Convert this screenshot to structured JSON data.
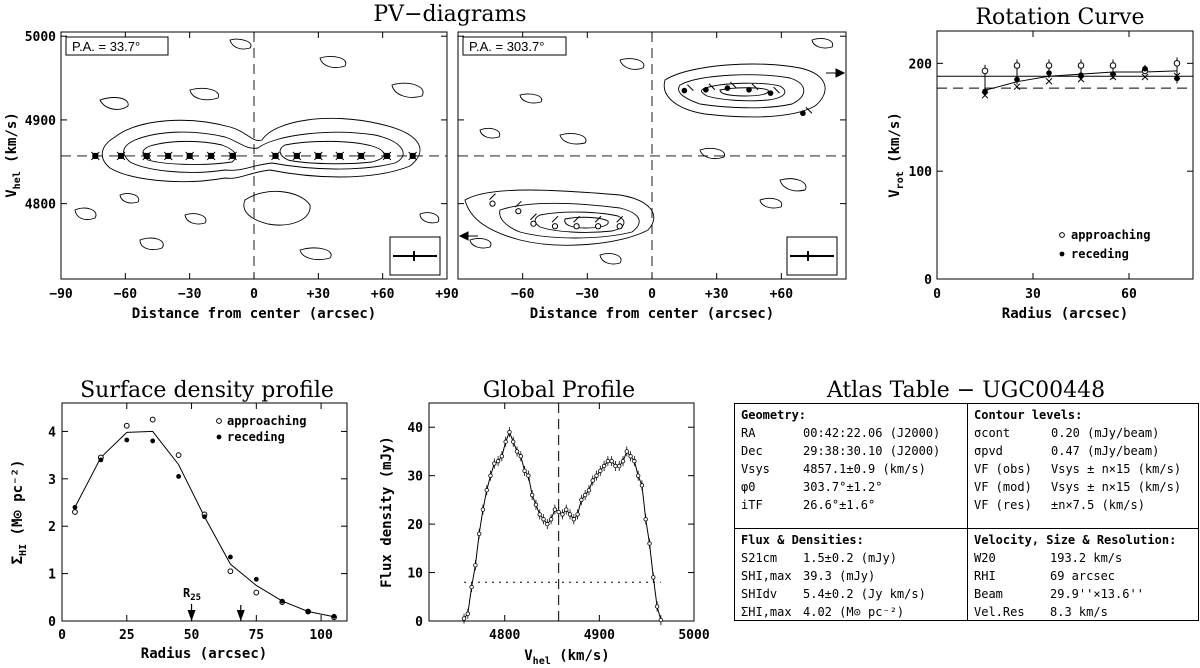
{
  "pv": {
    "title": "PV−diagrams",
    "xlabel": "Distance from center (arcsec)",
    "ylabel_main": "V",
    "ylabel_sub": "hel",
    "ylabel_unit": " (km/s)",
    "left_pa": "P.A. = 33.7°",
    "right_pa": "P.A. = 303.7°",
    "x_ticks": [
      "−90",
      "−60",
      "−30",
      "0",
      "+30",
      "+60",
      "+90"
    ],
    "x_ticks_right": [
      "−60",
      "−30",
      "0",
      "+30",
      "+60"
    ],
    "y_ticks": [
      "5000",
      "4900",
      "4800"
    ]
  },
  "rotation": {
    "title": "Rotation Curve",
    "xlabel": "Radius (arcsec)",
    "ylabel_main": "V",
    "ylabel_sub": "rot",
    "ylabel_unit": " (km/s)",
    "x_ticks": [
      "0",
      "30",
      "60"
    ],
    "y_ticks": [
      "0",
      "100",
      "200"
    ],
    "legend": [
      "approaching",
      "receding"
    ]
  },
  "surface": {
    "title": "Surface density profile",
    "xlabel": "Radius (arcsec)",
    "ylabel_main": "Σ",
    "ylabel_sub": "HI",
    "ylabel_unit": " (M⊙ pc⁻²)",
    "x_ticks": [
      "0",
      "25",
      "50",
      "75",
      "100"
    ],
    "y_ticks": [
      "0",
      "1",
      "2",
      "3",
      "4"
    ],
    "legend": [
      "approaching",
      "receding"
    ],
    "r25_main": "R",
    "r25_sub": "25"
  },
  "global": {
    "title": "Global Profile",
    "xlabel_main": "V",
    "xlabel_sub": "hel",
    "xlabel_unit": " (km/s)",
    "ylabel": "Flux density (mJy)",
    "x_ticks": [
      "4800",
      "4900",
      "5000"
    ],
    "y_ticks": [
      "0",
      "10",
      "20",
      "30",
      "40"
    ]
  },
  "atlas": {
    "title": "Atlas Table − UGC00448",
    "geometry": {
      "header": "Geometry:",
      "rows": [
        {
          "k": "RA",
          "v": "00:42:22.06 (J2000)"
        },
        {
          "k": "Dec",
          "v": "29:38:30.10 (J2000)"
        },
        {
          "k": "Vsys",
          "v": "4857.1±0.9 (km/s)"
        },
        {
          "k": "φ0",
          "v": "303.7°±1.2°"
        },
        {
          "k": "iTF",
          "v": "26.6°±1.6°"
        }
      ]
    },
    "contours": {
      "header": "Contour levels:",
      "rows": [
        {
          "k": "σcont",
          "v": "0.20 (mJy/beam)"
        },
        {
          "k": "σpvd",
          "v": "0.47 (mJy/beam)"
        },
        {
          "k": "VF (obs)",
          "v": "Vsys ± n×15 (km/s)"
        },
        {
          "k": "VF (mod)",
          "v": "Vsys ± n×15 (km/s)"
        },
        {
          "k": "VF (res)",
          "v": "±n×7.5 (km/s)"
        }
      ]
    },
    "flux": {
      "header": "Flux & Densities:",
      "rows": [
        {
          "k": "S21cm",
          "v": "1.5±0.2 (mJy)"
        },
        {
          "k": "SHI,max",
          "v": "39.3 (mJy)"
        },
        {
          "k": "SHIdv",
          "v": "5.4±0.2 (Jy km/s)"
        },
        {
          "k": "ΣHI,max",
          "v": "4.02 (M⊙ pc⁻²)"
        }
      ]
    },
    "velocity": {
      "header": "Velocity, Size & Resolution:",
      "rows": [
        {
          "k": "W20",
          "v": "193.2 km/s"
        },
        {
          "k": "RHI",
          "v": "69 arcsec"
        },
        {
          "k": "Beam",
          "v": "29.9''×13.6''"
        },
        {
          "k": "Vel.Res",
          "v": "8.3 km/s"
        }
      ]
    }
  },
  "chart_data": [
    {
      "type": "scatter",
      "title": "PV−diagrams",
      "panel": "left",
      "annotation": "P.A. = 33.7°",
      "xlabel": "Distance from center (arcsec)",
      "ylabel": "Vhel (km/s)",
      "xlim": [
        -90,
        90
      ],
      "ylim": [
        4710,
        5005
      ],
      "series": [
        {
          "x": [
            -74,
            -62,
            -50,
            -40,
            -30,
            -20,
            -10,
            10,
            20,
            30,
            40,
            50,
            62,
            74
          ],
          "y": [
            4857,
            4857,
            4857,
            4857,
            4857,
            4857,
            4857,
            4857,
            4857,
            4857,
            4857,
            4857,
            4857,
            4857
          ]
        }
      ]
    },
    {
      "type": "scatter",
      "title": "PV−diagrams",
      "panel": "right",
      "annotation": "P.A. = 303.7°",
      "xlabel": "Distance from center (arcsec)",
      "ylabel": "Vhel (km/s)",
      "xlim": [
        -90,
        90
      ],
      "ylim": [
        4710,
        5005
      ],
      "series": [
        {
          "x": [
            -74,
            -62,
            -55,
            -45,
            -35,
            -25,
            -15
          ],
          "y": [
            4800,
            4791,
            4776,
            4773,
            4773,
            4773,
            4773
          ]
        },
        {
          "x": [
            15,
            25,
            35,
            45,
            55,
            70
          ],
          "y": [
            4935,
            4936,
            4938,
            4936,
            4932,
            4908
          ]
        }
      ]
    },
    {
      "type": "scatter",
      "title": "Rotation Curve",
      "xlabel": "Radius (arcsec)",
      "ylabel": "Vrot (km/s)",
      "xlim": [
        0,
        80
      ],
      "ylim": [
        0,
        230
      ],
      "series": [
        {
          "name": "approaching",
          "x": [
            15,
            25,
            35,
            45,
            55,
            65,
            75
          ],
          "y": [
            193,
            198,
            198,
            198,
            198,
            193,
            200
          ]
        },
        {
          "name": "receding",
          "x": [
            15,
            25,
            35,
            45,
            55,
            65,
            75
          ],
          "y": [
            174,
            185,
            191,
            189,
            190,
            195,
            186
          ]
        },
        {
          "x": [
            15,
            25,
            35,
            45,
            55,
            65,
            75
          ],
          "y": [
            175,
            183,
            188,
            190,
            192,
            192,
            193
          ]
        }
      ],
      "hlines": [
        188,
        177
      ]
    },
    {
      "type": "line",
      "title": "Surface density profile",
      "xlabel": "Radius (arcsec)",
      "ylabel": "ΣHI (M⊙ pc⁻²)",
      "xlim": [
        0,
        110
      ],
      "ylim": [
        0,
        4.6
      ],
      "series": [
        {
          "name": "approaching",
          "x": [
            5,
            15,
            25,
            35,
            45,
            55,
            65,
            75,
            85,
            95,
            105
          ],
          "y": [
            2.3,
            3.45,
            4.12,
            4.25,
            3.5,
            2.25,
            1.05,
            0.6,
            0.4,
            0.2,
            0.08
          ]
        },
        {
          "name": "receding",
          "x": [
            5,
            15,
            25,
            35,
            45,
            55,
            65,
            75,
            85,
            95,
            105
          ],
          "y": [
            2.4,
            3.4,
            3.82,
            3.8,
            3.05,
            2.2,
            1.35,
            0.88,
            0.42,
            0.2,
            0.1
          ]
        },
        {
          "x": [
            5,
            15,
            25,
            35,
            45,
            55,
            65,
            75,
            85,
            95,
            105
          ],
          "y": [
            2.4,
            3.45,
            3.98,
            4.0,
            3.3,
            2.2,
            1.2,
            0.75,
            0.42,
            0.2,
            0.09
          ]
        }
      ],
      "markers_x": [
        50,
        69
      ]
    },
    {
      "type": "line",
      "title": "Global Profile",
      "xlabel": "Vhel (km/s)",
      "ylabel": "Flux density (mJy)",
      "xlim": [
        4720,
        5000
      ],
      "ylim": [
        0,
        45
      ],
      "series": [
        {
          "x": [
            4757,
            4761,
            4765,
            4769,
            4773,
            4777,
            4781,
            4785,
            4789,
            4793,
            4797,
            4801,
            4805,
            4809,
            4813,
            4817,
            4821,
            4825,
            4829,
            4833,
            4837,
            4841,
            4845,
            4849,
            4853,
            4857,
            4861,
            4865,
            4869,
            4873,
            4877,
            4881,
            4885,
            4889,
            4893,
            4897,
            4901,
            4905,
            4909,
            4913,
            4917,
            4921,
            4925,
            4929,
            4933,
            4937,
            4941,
            4945,
            4949,
            4953,
            4957,
            4961,
            4965
          ],
          "y": [
            0.5,
            1.5,
            7,
            11.5,
            18,
            23,
            27,
            30,
            32.5,
            33,
            34,
            37,
            39,
            37,
            35,
            34,
            31,
            30,
            26,
            24,
            22,
            21,
            20,
            21,
            23,
            22.5,
            22,
            23,
            22,
            21,
            22,
            25,
            26,
            27,
            29,
            30,
            31,
            32,
            33,
            33,
            32,
            32,
            33,
            35,
            34,
            33,
            30,
            28,
            21,
            16,
            9,
            3,
            0.2
          ]
        }
      ],
      "hline": 8,
      "vline": 4857
    }
  ]
}
